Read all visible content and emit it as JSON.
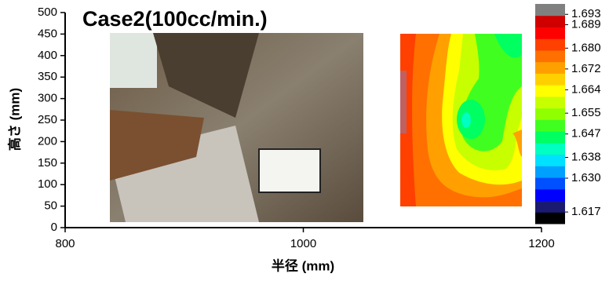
{
  "chart_data": {
    "type": "contour",
    "title": "Case2(100cc/min.)",
    "x_label": "半径 (mm)",
    "y_label": "高さ (mm)",
    "xlim": [
      800,
      1200
    ],
    "xticks": [
      800,
      1000,
      1200
    ],
    "ylim": [
      0,
      500
    ],
    "yticks": [
      0,
      50,
      100,
      150,
      200,
      250,
      300,
      350,
      400,
      450,
      500
    ],
    "colorbar": {
      "clim": [
        1.6125,
        1.697
      ],
      "colors": [
        "#000000",
        "#1a1a70",
        "#0000ff",
        "#0050ff",
        "#00a0ff",
        "#00e0ff",
        "#00ffc0",
        "#00ff60",
        "#40ff20",
        "#90ff00",
        "#c8ff00",
        "#ffff00",
        "#ffd000",
        "#ffa000",
        "#ff7000",
        "#ff4000",
        "#ff0000",
        "#d00000",
        "#808080"
      ],
      "ticks": [
        1.693,
        1.689,
        {
          "value": 1.68,
          "label": "1.680"
        },
        1.672,
        1.664,
        1.655,
        1.647,
        1.638,
        {
          "value": 1.63,
          "label": "1.630"
        },
        1.617
      ]
    }
  }
}
